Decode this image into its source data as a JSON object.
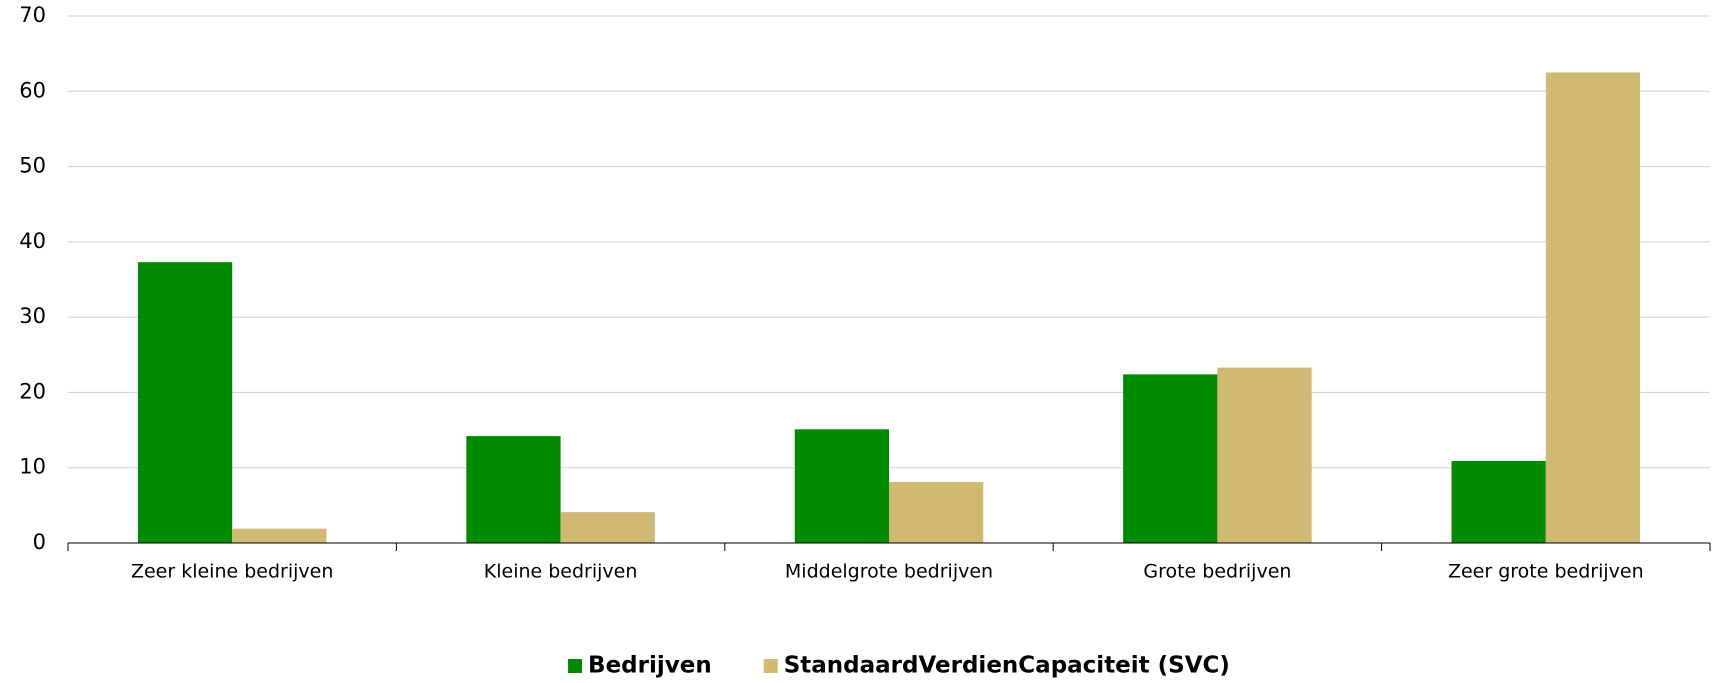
{
  "chart_data": {
    "type": "bar",
    "categories": [
      "Zeer kleine bedrijven",
      "Kleine bedrijven",
      "Middelgrote bedrijven",
      "Grote bedrijven",
      "Zeer grote bedrijven"
    ],
    "series": [
      {
        "name": "Bedrijven",
        "color": "#008a00",
        "values": [
          37.3,
          14.2,
          15.1,
          22.4,
          10.9
        ]
      },
      {
        "name": "StandaardVerdienCapaciteit (SVC)",
        "color": "#d0b973",
        "values": [
          1.9,
          4.1,
          8.1,
          23.3,
          62.5
        ]
      }
    ],
    "ylim": [
      0,
      70
    ],
    "yticks": [
      0,
      10,
      20,
      30,
      40,
      50,
      60,
      70
    ],
    "grid": true,
    "legend": "bottom"
  }
}
